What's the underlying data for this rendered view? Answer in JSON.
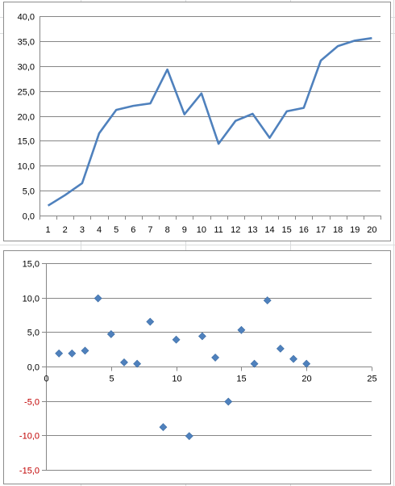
{
  "chart_data": [
    {
      "type": "line",
      "categories": [
        "1",
        "2",
        "3",
        "4",
        "5",
        "6",
        "7",
        "8",
        "9",
        "10",
        "11",
        "12",
        "13",
        "14",
        "15",
        "16",
        "17",
        "18",
        "19",
        "20"
      ],
      "series": [
        {
          "values": [
            2.0,
            4.1,
            6.5,
            16.5,
            21.2,
            22.0,
            22.5,
            29.3,
            20.3,
            24.5,
            14.4,
            19.0,
            20.4,
            15.6,
            20.9,
            21.6,
            31.1,
            34.0,
            35.1,
            35.6
          ],
          "color": "#4f81bd"
        }
      ],
      "yticks": [
        "0,0",
        "5,0",
        "10,0",
        "15,0",
        "20,0",
        "25,0",
        "30,0",
        "35,0",
        "40,0"
      ],
      "ylim": [
        0,
        40
      ],
      "grid": "horizontal",
      "legend": "none",
      "title": "",
      "xlabel": "",
      "ylabel": ""
    },
    {
      "type": "scatter",
      "series": [
        {
          "x": [
            1,
            2,
            3,
            4,
            5,
            6,
            7,
            8,
            9,
            10,
            11,
            12,
            13,
            14,
            15,
            16,
            17,
            18,
            19,
            20
          ],
          "y": [
            1.9,
            1.9,
            2.3,
            9.9,
            4.7,
            0.6,
            0.4,
            6.5,
            -8.8,
            3.9,
            -10.1,
            4.4,
            1.3,
            -5.1,
            5.3,
            0.4,
            9.6,
            2.6,
            1.1,
            0.4
          ],
          "color": "#4f81bd",
          "marker": "diamond"
        }
      ],
      "xticks": [
        "0",
        "5",
        "10",
        "15",
        "20",
        "25"
      ],
      "yticks": [
        "15,0",
        "10,0",
        "5,0",
        "0,0",
        "-5,0",
        "-10,0",
        "-15,0"
      ],
      "negative_tick_color": "#c00000",
      "xlim": [
        0,
        25
      ],
      "ylim": [
        -15,
        15
      ],
      "grid": "horizontal",
      "legend": "none",
      "title": "",
      "xlabel": "",
      "ylabel": ""
    }
  ]
}
